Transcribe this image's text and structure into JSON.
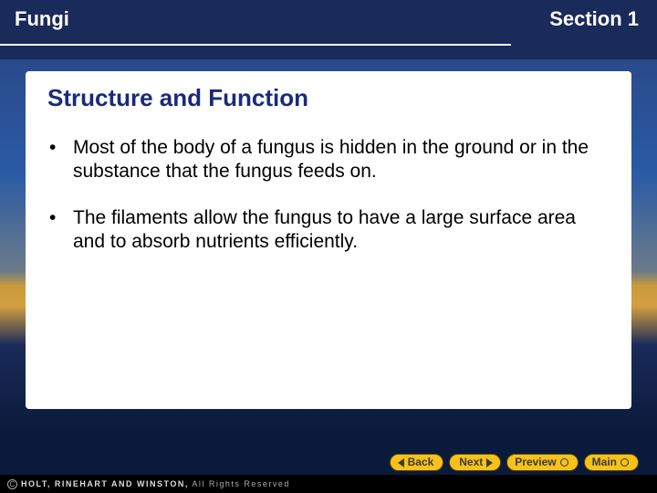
{
  "header": {
    "left": "Fungi",
    "right": "Section 1"
  },
  "content": {
    "title": "Structure and Function",
    "bullets": [
      "Most of the body of a fungus is hidden in the ground or in the substance that the fungus feeds on.",
      "The filaments allow the fungus to have a large surface area and to absorb nutrients efficiently."
    ]
  },
  "nav": {
    "back": "Back",
    "next": "Next",
    "preview": "Preview",
    "main": "Main"
  },
  "footer": {
    "publisher": "HOLT, RINEHART AND WINSTON,",
    "rights": " All Rights Reserved"
  },
  "colors": {
    "title_color": "#1a2a7a",
    "button_bg": "#f6c21a",
    "header_text": "#ffffff"
  }
}
